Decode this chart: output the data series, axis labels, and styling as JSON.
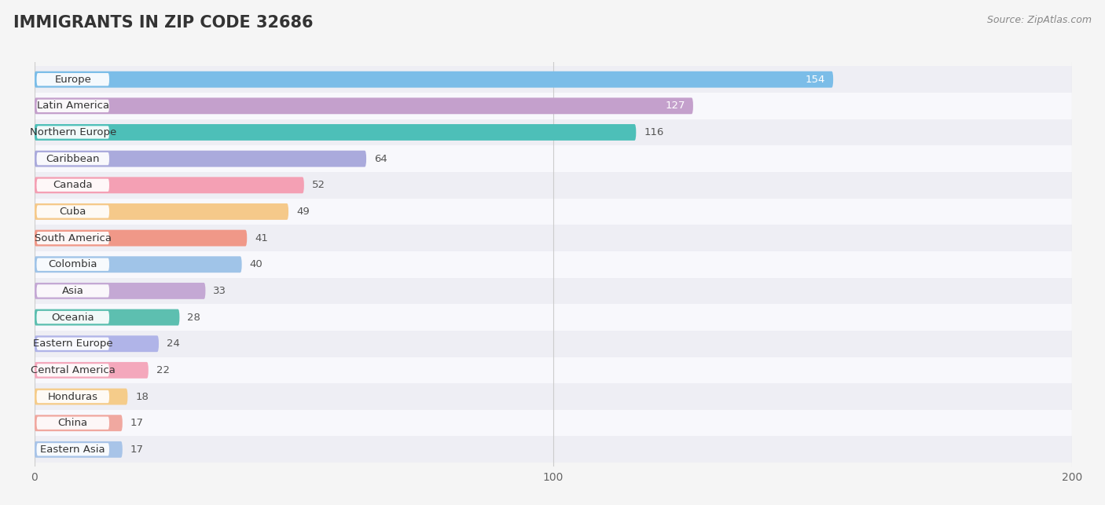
{
  "title": "IMMIGRANTS IN ZIP CODE 32686",
  "source": "Source: ZipAtlas.com",
  "categories": [
    "Europe",
    "Latin America",
    "Northern Europe",
    "Caribbean",
    "Canada",
    "Cuba",
    "South America",
    "Colombia",
    "Asia",
    "Oceania",
    "Eastern Europe",
    "Central America",
    "Honduras",
    "China",
    "Eastern Asia"
  ],
  "values": [
    154,
    127,
    116,
    64,
    52,
    49,
    41,
    40,
    33,
    28,
    24,
    22,
    18,
    17,
    17
  ],
  "bar_colors": [
    "#7BBDE8",
    "#C4A0CC",
    "#4DBFB8",
    "#AAAADC",
    "#F4A0B4",
    "#F5C98A",
    "#F09888",
    "#A0C4E8",
    "#C4A8D4",
    "#5DBFB0",
    "#B0B4E8",
    "#F4A8BC",
    "#F5CC8A",
    "#F0A8A0",
    "#A8C4E8"
  ],
  "value_inside_color": [
    "#ffffff",
    "#ffffff",
    "#555555"
  ],
  "xlim": [
    0,
    200
  ],
  "xticks": [
    0,
    100,
    200
  ],
  "bg_color": "#f5f5f5",
  "row_colors": [
    "#eeeef4",
    "#f8f8fc"
  ],
  "title_fontsize": 15,
  "label_fontsize": 9.5,
  "value_fontsize": 9.5
}
